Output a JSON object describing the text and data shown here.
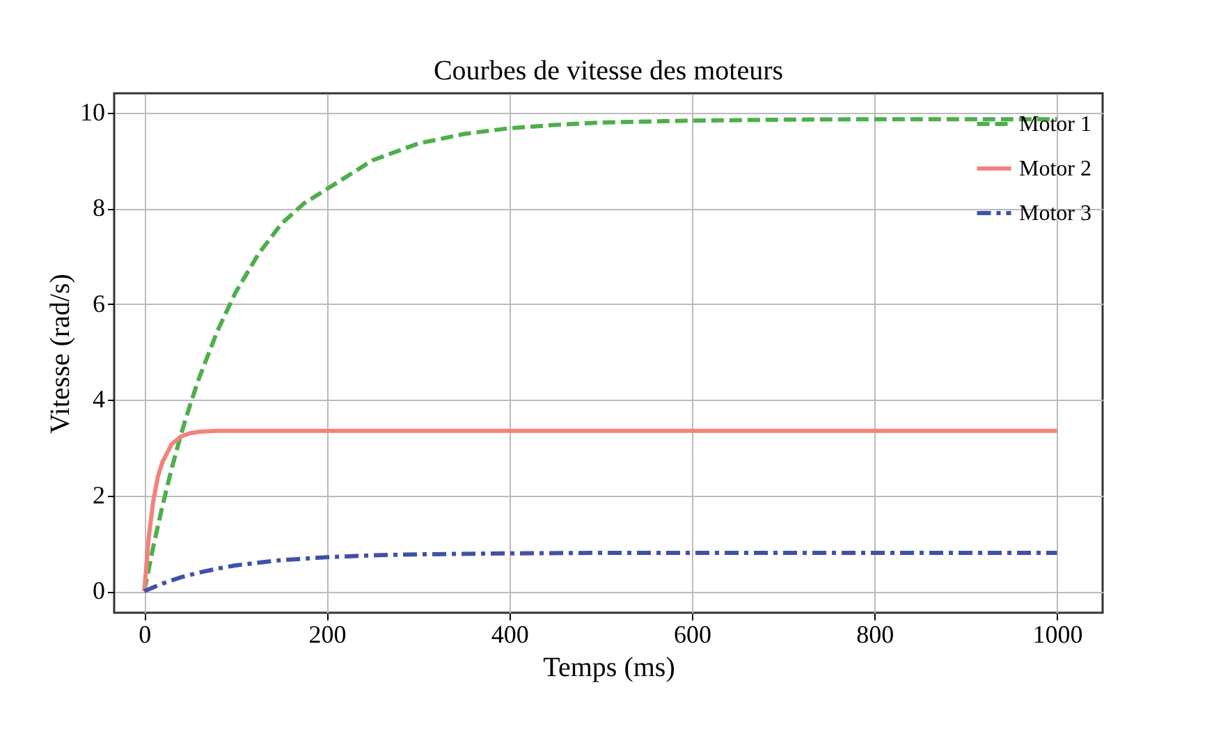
{
  "chart_data": {
    "type": "line",
    "title": "Courbes de vitesse des moteurs",
    "xlabel": "Temps (ms)",
    "ylabel": "Vitesse (rad/s)",
    "xlim": [
      -33,
      1050
    ],
    "ylim": [
      -0.45,
      10.4
    ],
    "xticks": [
      0,
      200,
      400,
      600,
      800,
      1000
    ],
    "yticks": [
      0,
      2,
      4,
      6,
      8,
      10
    ],
    "grid": true,
    "legend": "top right",
    "series": [
      {
        "name": "Motor 1",
        "color": "#4daf4a",
        "line_style": "dashed",
        "x": [
          0,
          10,
          20,
          30,
          40,
          50,
          60,
          80,
          100,
          125,
          150,
          175,
          200,
          250,
          300,
          350,
          400,
          450,
          500,
          600,
          700,
          800,
          900,
          1000
        ],
        "values": [
          0,
          0.94,
          1.79,
          2.56,
          3.26,
          3.88,
          4.45,
          5.43,
          6.24,
          7.04,
          7.67,
          8.1,
          8.4,
          9.0,
          9.35,
          9.55,
          9.67,
          9.74,
          9.79,
          9.83,
          9.85,
          9.86,
          9.86,
          9.86
        ]
      },
      {
        "name": "Motor 2",
        "color": "#f4827c",
        "line_style": "solid",
        "x": [
          0,
          5,
          10,
          15,
          20,
          30,
          40,
          50,
          60,
          80,
          100,
          1000
        ],
        "values": [
          0,
          1.15,
          1.9,
          2.4,
          2.7,
          3.07,
          3.23,
          3.3,
          3.33,
          3.35,
          3.35,
          3.35
        ]
      },
      {
        "name": "Motor 3",
        "color": "#3f51a8",
        "line_style": "dashdot",
        "x": [
          0,
          20,
          40,
          60,
          80,
          100,
          150,
          200,
          250,
          300,
          400,
          500,
          600,
          800,
          1000
        ],
        "values": [
          0,
          0.16,
          0.29,
          0.39,
          0.47,
          0.54,
          0.65,
          0.71,
          0.75,
          0.77,
          0.79,
          0.8,
          0.8,
          0.8,
          0.8
        ]
      }
    ]
  }
}
